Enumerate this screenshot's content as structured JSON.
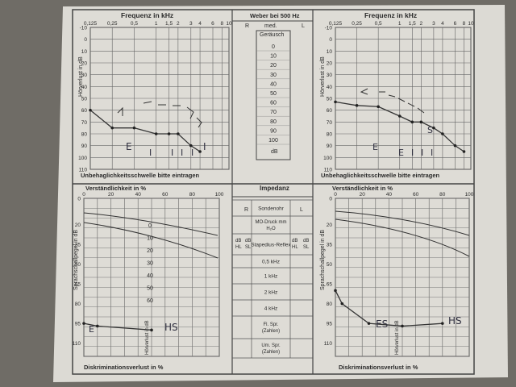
{
  "audiogram": {
    "title": "Frequenz in kHz",
    "freq_labels": [
      "0,125",
      "0,25",
      "0,5",
      "1",
      "1,5",
      "2",
      "3",
      "4",
      "6",
      "8",
      "10"
    ],
    "db_labels": [
      "-10",
      "0",
      "10",
      "20",
      "30",
      "40",
      "50",
      "60",
      "70",
      "80",
      "90",
      "100",
      "110"
    ],
    "y_axis": "Hörverlust in dB",
    "footer": "Unbehaglichkeitsschwelle bitte eintragen"
  },
  "weber": {
    "title": "Weber bei 500 Hz",
    "r": "R",
    "med": "med.",
    "l": "L",
    "noise": "Geräusch",
    "levels": [
      "0",
      "10",
      "20",
      "30",
      "40",
      "50",
      "60",
      "70",
      "80",
      "90",
      "100"
    ],
    "unit": "dB"
  },
  "speech": {
    "title": "Verständlichkeit in %",
    "x_labels": [
      "0",
      "20",
      "40",
      "60",
      "80",
      "100"
    ],
    "y_labels": [
      "0",
      "20",
      "35",
      "50",
      "65",
      "80",
      "95",
      "110"
    ],
    "y_axis": "Sprachschallpegel in dB",
    "inner_labels": [
      "0",
      "10",
      "20",
      "30",
      "40",
      "50",
      "60"
    ],
    "loss_axis": "Hörverlust in dB",
    "footer": "Diskriminationsverlust in %"
  },
  "impedanz": {
    "title": "Impedanz",
    "r": "R",
    "l": "L",
    "rows": [
      "Sondenohr",
      "MO-Druck mm H₂O",
      "Stapedius-Reflex",
      "0,5 kHz",
      "1 kHz",
      "2 kHz",
      "4 kHz",
      "Fl. Spr. (Zahlen)",
      "Um. Spr. (Zahlen)"
    ],
    "db": "dB",
    "hl": "HL",
    "sl": "SL"
  },
  "handwriting": {
    "left_audiogram": [
      "E",
      "I",
      "I",
      "I",
      "I",
      "I"
    ],
    "right_audiogram": [
      "E",
      "E",
      "I",
      "I",
      "I",
      "S"
    ],
    "left_speech": "HS",
    "left_speech_marker": "E",
    "right_speech_left": "ES",
    "right_speech_right": "HS"
  },
  "chart_data": [
    {
      "type": "line",
      "title": "Frequenz in kHz",
      "ylabel": "Hörverlust in dB",
      "x": [
        "0,125",
        "0,25",
        "0,5",
        "1",
        "1,5",
        "2",
        "3",
        "4",
        "6",
        "8"
      ],
      "series": [
        {
          "values": [
            60,
            75,
            75,
            80,
            80,
            80,
            90,
            95,
            null,
            null
          ]
        }
      ],
      "ylim": [
        -10,
        110
      ]
    },
    {
      "type": "line",
      "title": "Frequenz in kHz",
      "ylabel": "Hörverlust in dB",
      "x": [
        "0,125",
        "0,25",
        "0,5",
        "1",
        "1,5",
        "2",
        "3",
        "4",
        "6",
        "8"
      ],
      "series": [
        {
          "values": [
            53,
            56,
            57,
            65,
            70,
            70,
            75,
            80,
            90,
            95
          ]
        }
      ],
      "ylim": [
        -10,
        110
      ]
    },
    {
      "type": "line",
      "title": "Verständlichkeit in %",
      "ylabel": "Sprachschallpegel in dB",
      "x": [
        0,
        10,
        50
      ],
      "series": [
        {
          "values": [
            95,
            97,
            100
          ]
        }
      ],
      "ylim": [
        0,
        110
      ]
    },
    {
      "type": "line",
      "title": "Verständlichkeit in %",
      "ylabel": "Sprachschallpegel in dB",
      "x": [
        0,
        5,
        25,
        50,
        80
      ],
      "series": [
        {
          "values": [
            70,
            80,
            95,
            97,
            95
          ]
        }
      ],
      "ylim": [
        0,
        110
      ]
    }
  ]
}
